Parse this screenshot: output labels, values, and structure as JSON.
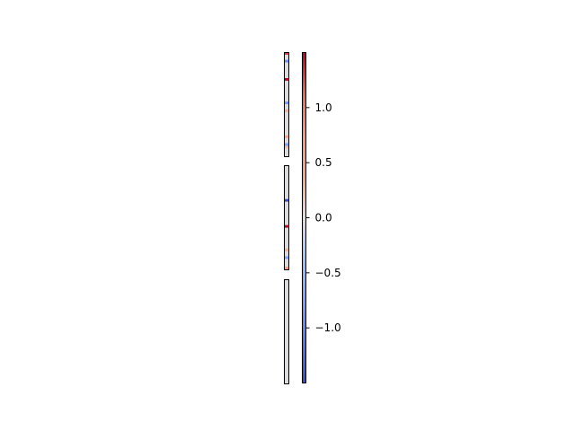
{
  "chart_data": [
    {
      "type": "heatmap",
      "panel": "top",
      "rows": 40,
      "columns": 1,
      "default_value": -0.02,
      "cells": [
        {
          "row": 0,
          "value": 1.3
        },
        {
          "row": 3,
          "value": -0.9
        },
        {
          "row": 10,
          "value": 1.5
        },
        {
          "row": 19,
          "value": -0.8
        },
        {
          "row": 22,
          "value": 0.3
        },
        {
          "row": 32,
          "value": 0.4
        },
        {
          "row": 35,
          "value": -0.7
        },
        {
          "row": 36,
          "value": 0.2
        }
      ]
    },
    {
      "type": "heatmap",
      "panel": "middle",
      "rows": 40,
      "columns": 1,
      "default_value": -0.02,
      "cells": [
        {
          "row": 13,
          "value": -1.5
        },
        {
          "row": 23,
          "value": 1.5
        },
        {
          "row": 32,
          "value": 0.3
        },
        {
          "row": 35,
          "value": -0.7
        },
        {
          "row": 39,
          "value": 0.5
        }
      ]
    },
    {
      "type": "heatmap",
      "panel": "bottom",
      "rows": 40,
      "columns": 1,
      "default_value": -0.02,
      "cells": []
    }
  ],
  "colorbar": {
    "colormap": "coolwarm",
    "vmin": -1.5,
    "vmax": 1.5,
    "ticks": [
      -1.0,
      -0.5,
      0.0,
      0.5,
      1.0
    ],
    "tick_labels": [
      "−1.0",
      "−0.5",
      "0.0",
      "0.5",
      "1.0"
    ]
  }
}
